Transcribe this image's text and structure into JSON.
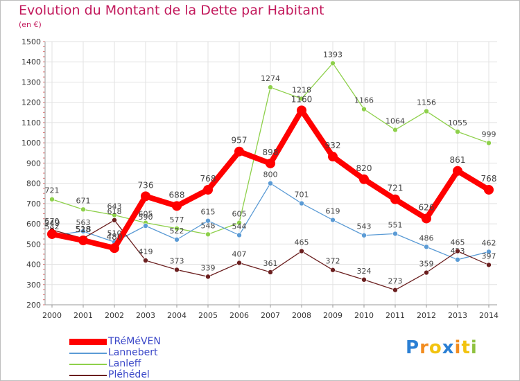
{
  "header": {
    "title": "Evolution du Montant de la Dette par Habitant",
    "unit": "(en €)"
  },
  "chart_data": {
    "type": "line",
    "x": [
      "2000",
      "2001",
      "2002",
      "2003",
      "2004",
      "2005",
      "2006",
      "2007",
      "2008",
      "2009",
      "2010",
      "2011",
      "2012",
      "2013",
      "2014"
    ],
    "ylim": [
      200,
      1500
    ],
    "yticks": [
      200,
      300,
      400,
      500,
      600,
      700,
      800,
      900,
      1000,
      1100,
      1200,
      1300,
      1400,
      1500
    ],
    "grid": true,
    "legend_position": "bottom-left",
    "series": [
      {
        "name": "TRéMéVEN",
        "color": "#ff0000",
        "values": [
          549,
          518,
          480,
          736,
          688,
          768,
          957,
          898,
          1160,
          932,
          820,
          721,
          626,
          861,
          768
        ]
      },
      {
        "name": "Lannebert",
        "color": "#5b9bd5",
        "values": [
          542,
          563,
          510,
          590,
          522,
          615,
          544,
          800,
          701,
          619,
          543,
          551,
          486,
          423,
          462
        ]
      },
      {
        "name": "Lanleff",
        "color": "#8ed04b",
        "values": [
          721,
          671,
          643,
          605,
          577,
          548,
          605,
          1274,
          1218,
          1393,
          1166,
          1064,
          1156,
          1055,
          999
        ]
      },
      {
        "name": "Pléhédel",
        "color": "#6b1f1f",
        "values": [
          570,
          528,
          618,
          419,
          373,
          339,
          407,
          361,
          465,
          372,
          324,
          273,
          359,
          465,
          397
        ]
      }
    ]
  },
  "logo": {
    "letters": [
      "P",
      "r",
      "o",
      "x",
      "i",
      "t",
      "i"
    ],
    "colors": [
      "#2a7fd4",
      "#f28c1e",
      "#f2c30f",
      "#2a7fd4",
      "#f28c1e",
      "#f2c30f",
      "#8fc23f"
    ]
  }
}
